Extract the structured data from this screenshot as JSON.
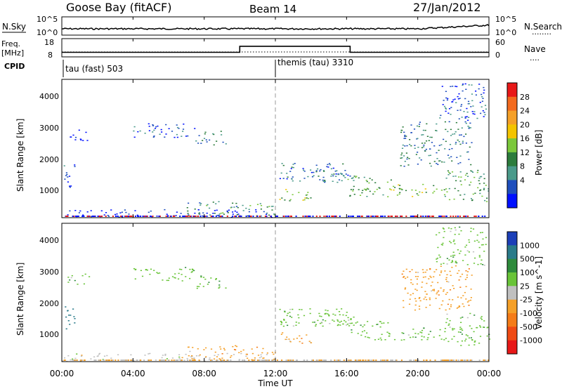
{
  "header": {
    "station": "Goose Bay (fitACF)",
    "beam": "Beam 14",
    "date": "27/Jan/2012"
  },
  "nsky_panel": {
    "left_label": "N.Sky",
    "right_label": "N.Search",
    "tick_top": "10^5",
    "tick_bottom": "10^0",
    "legend_dots": "........"
  },
  "freq_panel": {
    "left_label_1": "Freq.",
    "left_label_2": "[MHz]",
    "left_tick_top": "18",
    "left_tick_bottom": "8",
    "right_label": "Nave",
    "right_tick_top": "60",
    "right_tick_bottom": "0",
    "legend_dots": "...."
  },
  "cpid": {
    "label": "CPID",
    "modes": [
      "tau (fast) 503",
      "themis (tau) 3310"
    ]
  },
  "x_axis": {
    "title": "Time UT",
    "ticks": [
      "00:00",
      "04:00",
      "08:00",
      "12:00",
      "16:00",
      "20:00",
      "00:00"
    ],
    "range_hours": [
      0,
      24
    ]
  },
  "power_panel": {
    "ylabel": "Slant Range [km]",
    "yticks": [
      "1000",
      "2000",
      "3000",
      "4000"
    ],
    "ylim": [
      180,
      4500
    ],
    "colorbar_title": "Power [dB]",
    "colorbar_labels": [
      "4",
      "8",
      "12",
      "16",
      "20",
      "24",
      "28"
    ],
    "colorbar_colors": [
      "#0010ff",
      "#1f4fbd",
      "#4a9a8a",
      "#2c7c3c",
      "#7bc83b",
      "#f4c400",
      "#f5a028",
      "#f36a1e",
      "#e81818"
    ]
  },
  "velocity_panel": {
    "ylabel": "Slant Range [km]",
    "yticks": [
      "1000",
      "2000",
      "3000",
      "4000"
    ],
    "ylim": [
      180,
      4500
    ],
    "colorbar_title": "Velocity [m s^-1]",
    "colorbar_labels": [
      "1000",
      "500",
      "100",
      "25",
      "-25",
      "-100",
      "-500",
      "-1000"
    ],
    "colorbar_colors": [
      "#1c3fb8",
      "#2a7b8a",
      "#2e8b3c",
      "#69c438",
      "#c0c0c0",
      "#f5a028",
      "#f57c18",
      "#f04a14",
      "#e81818"
    ]
  },
  "chart_data": {
    "type": "heatmap",
    "x_units": "hours UT",
    "y_units": "km",
    "scatter_regions": [
      {
        "t0": 0.1,
        "t1": 0.7,
        "r0": 1100,
        "r1": 1950,
        "power": 8,
        "velocity": 500
      },
      {
        "t0": 0.3,
        "t1": 1.5,
        "r0": 2600,
        "r1": 2950,
        "power": 4,
        "velocity": 25
      },
      {
        "t0": 4.0,
        "t1": 7.5,
        "r0": 2700,
        "r1": 3150,
        "power": 8,
        "velocity": 25
      },
      {
        "t0": 7.5,
        "t1": 9.2,
        "r0": 2450,
        "r1": 2900,
        "power": 12,
        "velocity": 25
      },
      {
        "t0": 0.0,
        "t1": 12.0,
        "r0": 200,
        "r1": 450,
        "power": 4,
        "velocity": -25
      },
      {
        "t0": 7.0,
        "t1": 10.0,
        "r0": 250,
        "r1": 700,
        "power": 14,
        "velocity": -100
      },
      {
        "t0": 10.0,
        "t1": 12.0,
        "r0": 250,
        "r1": 650,
        "power": 16,
        "velocity": -100
      },
      {
        "t0": 12.2,
        "t1": 14.0,
        "r0": 700,
        "r1": 1100,
        "power": 20,
        "velocity": -100
      },
      {
        "t0": 12.2,
        "t1": 16.0,
        "r0": 1300,
        "r1": 1900,
        "power": 10,
        "velocity": 25
      },
      {
        "t0": 16.0,
        "t1": 18.5,
        "r0": 850,
        "r1": 1500,
        "power": 18,
        "velocity": 25
      },
      {
        "t0": 18.5,
        "t1": 21.5,
        "r0": 850,
        "r1": 1250,
        "power": 20,
        "velocity": 25
      },
      {
        "t0": 21.5,
        "t1": 24.0,
        "r0": 700,
        "r1": 1700,
        "power": 16,
        "velocity": 25
      },
      {
        "t0": 19.0,
        "t1": 23.0,
        "r0": 1800,
        "r1": 3200,
        "power": 12,
        "velocity": -100
      },
      {
        "t0": 21.0,
        "t1": 23.8,
        "r0": 3200,
        "r1": 4400,
        "power": 8,
        "velocity": 25
      },
      {
        "t0": 14.0,
        "t1": 16.5,
        "r0": 1300,
        "r1": 1700,
        "power": 10,
        "velocity": 25
      }
    ],
    "freq_series": [
      {
        "t0": 0.0,
        "t1": 10.0,
        "mhz": 10.5
      },
      {
        "t0": 10.0,
        "t1": 16.2,
        "mhz": 13.8
      },
      {
        "t0": 16.2,
        "t1": 24.0,
        "mhz": 10.5
      }
    ],
    "cpid_switch_hour": 12.0
  }
}
